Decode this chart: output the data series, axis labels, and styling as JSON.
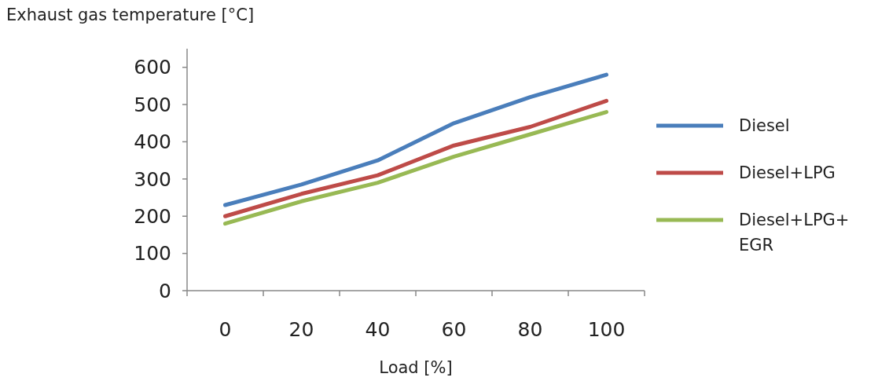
{
  "chart_data": {
    "type": "line",
    "title": "Exhaust gas temperature [°C]",
    "xlabel": "Load [%]",
    "categories": [
      "0",
      "20",
      "40",
      "60",
      "80",
      "100"
    ],
    "series": [
      {
        "name": "Diesel",
        "color": "#4a7ebb",
        "values": [
          230,
          285,
          350,
          450,
          520,
          580
        ]
      },
      {
        "name": "Diesel+LPG",
        "color": "#be4b48",
        "values": [
          200,
          260,
          310,
          390,
          440,
          510
        ]
      },
      {
        "name": "Diesel+LPG+EGR",
        "color": "#98b954",
        "values": [
          180,
          240,
          290,
          360,
          420,
          480
        ]
      }
    ],
    "ylim": [
      0,
      650
    ],
    "yticks": [
      0,
      100,
      200,
      300,
      400,
      500,
      600
    ],
    "legend": "right",
    "grid": false,
    "marker": "none",
    "line_style": "solid"
  }
}
